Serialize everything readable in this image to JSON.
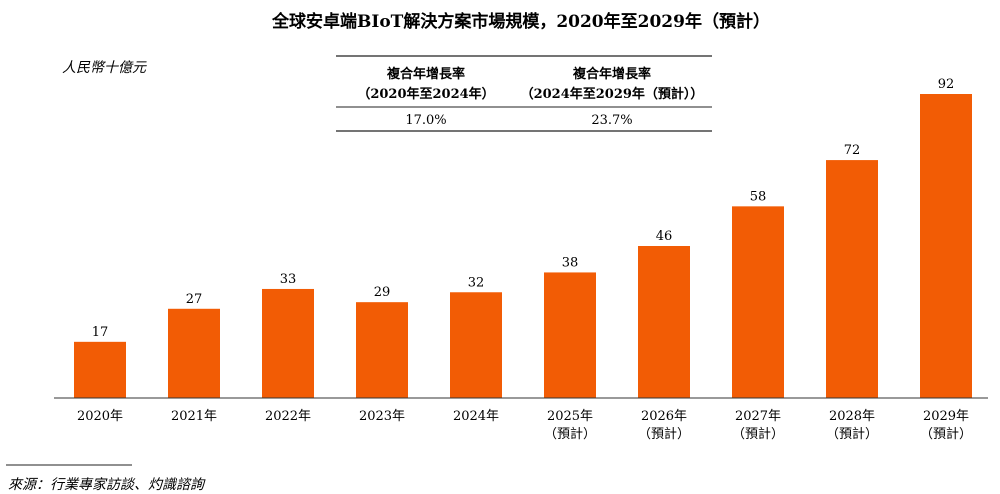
{
  "chart_data": {
    "type": "bar",
    "title": "全球安卓端BIoT解決方案市場規模，2020年至2029年（預計）",
    "unit_label": "人民幣十億元",
    "categories": [
      "2020年",
      "2021年",
      "2022年",
      "2023年",
      "2024年",
      "2025年",
      "2026年",
      "2027年",
      "2028年",
      "2029年"
    ],
    "category_sublabels": [
      "",
      "",
      "",
      "",
      "",
      "（預計）",
      "（預計）",
      "（預計）",
      "（預計）",
      "（預計）"
    ],
    "values": [
      17,
      27,
      33,
      29,
      32,
      38,
      46,
      58,
      72,
      92
    ],
    "ylim": [
      0,
      92
    ],
    "bar_color": "#f25c05",
    "grid": false,
    "cagr_table": {
      "columns": [
        {
          "header_line1": "複合年增長率",
          "header_line2": "（2020年至2024年）",
          "value": "17.0%"
        },
        {
          "header_line1": "複合年增長率",
          "header_line2": "（2024年至2029年（預計））",
          "value": "23.7%"
        }
      ]
    }
  },
  "source": "來源：行業專家訪談、灼識諮詢"
}
